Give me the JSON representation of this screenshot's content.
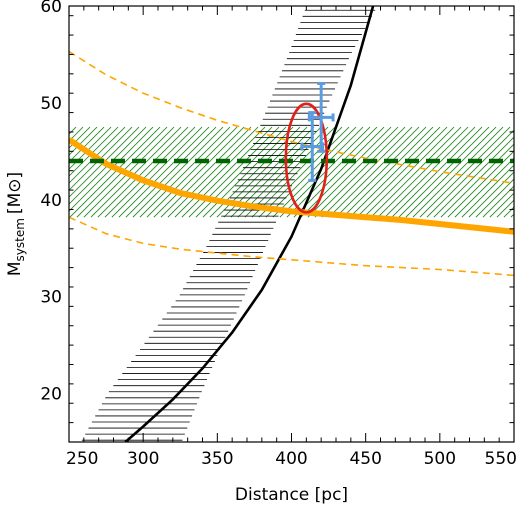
{
  "chart_data": {
    "type": "line",
    "xlabel": "Distance [pc]",
    "ylabel": "M",
    "ylabel_sub": "system",
    "ylabel_unit": "[M⊙]",
    "xlim": [
      250,
      550
    ],
    "ylim": [
      15,
      60
    ],
    "x_ticks": [
      250,
      300,
      350,
      400,
      450,
      500,
      550
    ],
    "y_ticks": [
      20,
      30,
      40,
      50,
      60
    ],
    "x_tick_labels": [
      "250",
      "300",
      "350",
      "400",
      "450",
      "500",
      "550"
    ],
    "y_tick_labels": [
      "20",
      "30",
      "40",
      "50",
      "60"
    ],
    "grid": false,
    "colors": {
      "black_curve": "#000000",
      "orange_curve": "#FFA500",
      "green_line": "#006400",
      "green_band": "#228B22",
      "ellipse": "#E0201B",
      "error_cross": "#5B9BE0"
    },
    "series": [
      {
        "style": "black-solid",
        "x": [
          288,
          300,
          320,
          340,
          360,
          380,
          400,
          420,
          440,
          455
        ],
        "y": [
          15.0,
          16.6,
          19.4,
          22.6,
          26.3,
          30.7,
          36.2,
          43.2,
          51.8,
          60.0
        ]
      },
      {
        "style": "orange-thick",
        "x": [
          250,
          275,
          300,
          325,
          350,
          375,
          400,
          425,
          450,
          475,
          500,
          525,
          550
        ],
        "y": [
          46.2,
          43.7,
          42.0,
          40.7,
          39.9,
          39.3,
          38.8,
          38.5,
          38.2,
          37.9,
          37.5,
          37.1,
          36.7
        ]
      },
      {
        "style": "orange-dashed-upper",
        "x": [
          250,
          275,
          300,
          325,
          350,
          375,
          400,
          425,
          450,
          475,
          500,
          525,
          550
        ],
        "y": [
          55.3,
          52.9,
          51.0,
          49.5,
          48.2,
          47.1,
          46.0,
          45.1,
          44.3,
          43.6,
          42.9,
          42.3,
          41.7
        ]
      },
      {
        "style": "orange-dashed-lower",
        "x": [
          250,
          275,
          300,
          325,
          350,
          375,
          400,
          425,
          450,
          475,
          500,
          525,
          550
        ],
        "y": [
          38.2,
          36.5,
          35.5,
          34.9,
          34.5,
          34.1,
          33.8,
          33.5,
          33.2,
          33.0,
          32.8,
          32.5,
          32.2
        ]
      },
      {
        "style": "green-dashed",
        "x": [
          250,
          550
        ],
        "y": [
          44.0,
          44.0
        ]
      }
    ],
    "bands": [
      {
        "style": "green-diagonal-hatch",
        "x": [
          250,
          550
        ],
        "y_low": 38.2,
        "y_high": 47.5
      },
      {
        "style": "black-horizontal-hatch",
        "y": [
          15.0,
          20.0,
          25.0,
          30.0,
          35.0,
          40.0,
          45.0,
          50.0,
          55.0,
          60.0
        ],
        "x_low": [
          258,
          276,
          300,
          324,
          342,
          358,
          372,
          385,
          398,
          410
        ],
        "x_high": [
          326,
          339,
          353,
          368,
          382,
          396,
          411,
          425,
          440,
          458
        ]
      }
    ],
    "ellipse": {
      "cx": 410,
      "cy": 44.3,
      "rx": 13.8,
      "ry": 5.6
    },
    "error_bars": [
      {
        "x": 414,
        "y": 45.5,
        "xerr": 7,
        "yerr": 3.5
      },
      {
        "x": 420,
        "y": 48.5,
        "xerr": 8,
        "yerr": 3.5
      }
    ]
  }
}
